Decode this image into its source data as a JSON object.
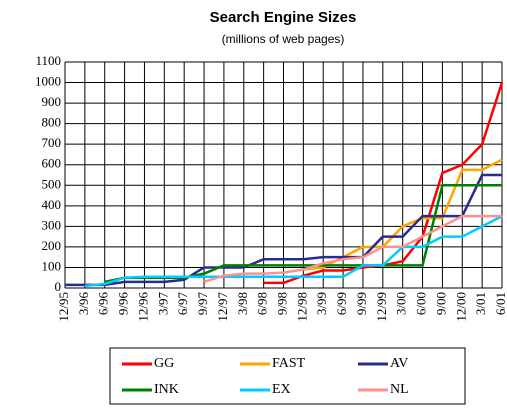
{
  "chart_data": {
    "type": "line",
    "title": "Search Engine Sizes",
    "subtitle": "(millions of web pages)",
    "categories": [
      "12/95",
      "3/96",
      "6/96",
      "9/96",
      "12/96",
      "3/97",
      "6/97",
      "9/97",
      "12/97",
      "3/98",
      "6/98",
      "9/98",
      "12/98",
      "3/99",
      "6/99",
      "9/99",
      "12/99",
      "3/00",
      "6/00",
      "9/00",
      "12/00",
      "3/01",
      "6/01"
    ],
    "series": [
      {
        "name": "GG",
        "color": "#ff0000",
        "values": [
          null,
          null,
          null,
          null,
          null,
          null,
          null,
          null,
          null,
          null,
          25,
          25,
          60,
          85,
          85,
          100,
          110,
          130,
          250,
          560,
          600,
          700,
          1000
        ]
      },
      {
        "name": "FAST",
        "color": "#ffa500",
        "values": [
          null,
          null,
          null,
          null,
          null,
          null,
          null,
          null,
          null,
          null,
          null,
          null,
          90,
          100,
          150,
          200,
          200,
          300,
          340,
          340,
          575,
          575,
          625
        ]
      },
      {
        "name": "AV",
        "color": "#2b2b8f",
        "values": [
          15,
          15,
          15,
          30,
          30,
          30,
          40,
          100,
          100,
          100,
          140,
          140,
          140,
          150,
          150,
          150,
          250,
          250,
          350,
          350,
          350,
          550,
          550
        ]
      },
      {
        "name": "INK",
        "color": "#008000",
        "values": [
          null,
          null,
          30,
          50,
          50,
          50,
          50,
          70,
          110,
          110,
          110,
          110,
          110,
          110,
          110,
          110,
          110,
          110,
          110,
          500,
          500,
          500,
          500
        ]
      },
      {
        "name": "EX",
        "color": "#00ccff",
        "values": [
          null,
          10,
          20,
          50,
          55,
          55,
          55,
          55,
          55,
          55,
          55,
          55,
          55,
          55,
          55,
          110,
          110,
          200,
          200,
          250,
          250,
          300,
          350
        ]
      },
      {
        "name": "NL",
        "color": "#ff9090",
        "values": [
          null,
          null,
          null,
          null,
          null,
          null,
          null,
          30,
          60,
          70,
          70,
          75,
          90,
          120,
          140,
          150,
          200,
          200,
          250,
          300,
          350,
          350,
          350
        ]
      }
    ],
    "ylim": [
      0,
      1100
    ],
    "yticks": [
      0,
      100,
      200,
      300,
      400,
      500,
      600,
      700,
      800,
      900,
      1000,
      1100
    ],
    "grid": true
  }
}
